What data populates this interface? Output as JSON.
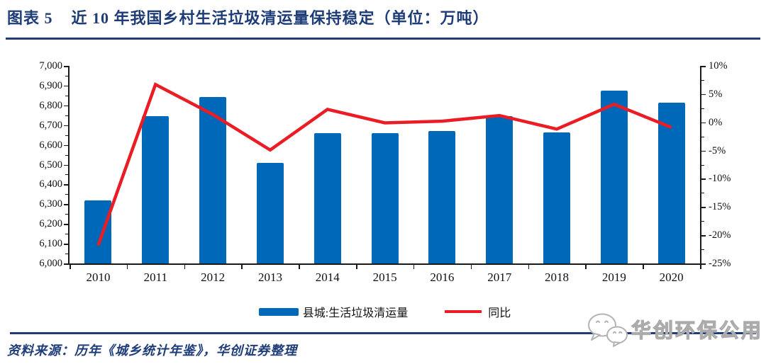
{
  "header": {
    "figure_label": "图表 5",
    "title": "近 10 年我国乡村生活垃圾清运量保持稳定（单位：万吨）"
  },
  "chart_data": {
    "type": "bar",
    "title": "近 10 年我国乡村生活垃圾清运量保持稳定",
    "unit": "万吨",
    "categories": [
      "2010",
      "2011",
      "2012",
      "2013",
      "2014",
      "2015",
      "2016",
      "2017",
      "2018",
      "2019",
      "2020"
    ],
    "series": [
      {
        "name": "县城:生活垃圾清运量",
        "type": "bar",
        "axis": "left",
        "values": [
          6319,
          6744,
          6841,
          6509,
          6661,
          6658,
          6669,
          6747,
          6664,
          6876,
          6812
        ]
      },
      {
        "name": "同比",
        "type": "line",
        "axis": "right",
        "values_pct": [
          -21.8,
          6.7,
          1.4,
          -4.9,
          2.3,
          -0.1,
          0.2,
          1.2,
          -1.2,
          3.2,
          -0.9
        ]
      }
    ],
    "left_axis": {
      "min": 6000,
      "max": 7000,
      "step": 100,
      "labels": [
        "7,000",
        "6,900",
        "6,800",
        "6,700",
        "6,600",
        "6,500",
        "6,400",
        "6,300",
        "6,200",
        "6,100",
        "6,000"
      ]
    },
    "right_axis": {
      "min": -25,
      "max": 10,
      "step": 5,
      "labels": [
        "10%",
        "5%",
        "0%",
        "-5%",
        "-10%",
        "-15%",
        "-20%",
        "-25%"
      ]
    },
    "grid": false,
    "legend_position": "bottom"
  },
  "legend": {
    "bar_label": "县城:生活垃圾清运量",
    "line_label": "同比"
  },
  "footer": {
    "source": "资料来源：历年《城乡统计年鉴》，华创证券整理"
  },
  "watermark": {
    "icon": "wechat-icon",
    "text": "华创环保公用"
  },
  "colors": {
    "accent_navy": "#1E3C78",
    "bar_blue": "#0068B8",
    "line_red": "#EB1C24",
    "axis_black": "#1a1a1a",
    "watermark_gray": "#ababab"
  }
}
